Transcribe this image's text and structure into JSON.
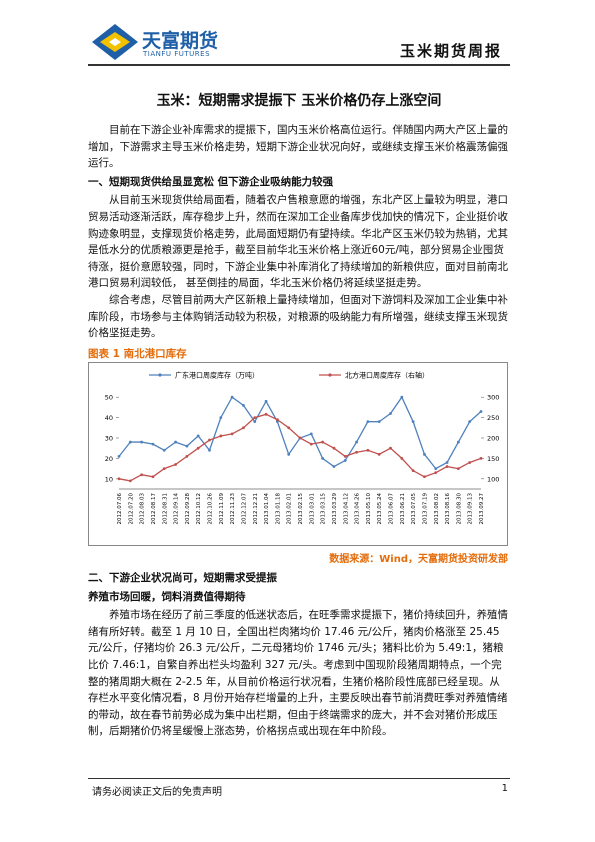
{
  "header": {
    "logo_name": "天富期货",
    "logo_sub": "TIANFU FUTURES",
    "report": "玉米期货周报"
  },
  "title": "玉米：短期需求提振下 玉米价格仍存上涨空间",
  "sections": [
    {
      "type": "p",
      "text": "目前在下游企业补库需求的提振下，国内玉米价格高位运行。伴随国内两大产区上量的增加，下游需求主导玉米价格走势，短期下游企业状况向好，或继续支撑玉米价格震荡偏强运行。"
    },
    {
      "type": "h",
      "text": "一、短期现货供给虽显宽松 但下游企业吸纳能力较强"
    },
    {
      "type": "p",
      "text": "从目前玉米现货供给局面看，随着农户售粮意愿的增强，东北产区上量较为明显，港口贸易活动逐渐活跃，库存稳步上升，然而在深加工企业备库步伐加快的情况下，企业挺价收购迹象明显，支撑现货价格走势，此局面短期仍有望持续。华北产区玉米仍较为热销，尤其是低水分的优质粮源更是抢手，截至目前华北玉米价格上涨近60元/吨，部分贸易企业囤货待涨，挺价意愿较强，同时，下游企业集中补库消化了持续增加的新粮供应，面对目前南北港口贸易利润较低， 甚至倒挂的局面，华北玉米价格仍将延续坚挺走势。"
    },
    {
      "type": "p",
      "text": "综合考虑，尽管目前两大产区新粮上量持续增加，但面对下游饲料及深加工企业集中补库阶段，市场参与主体购销活动较为积极，对粮源的吸纳能力有所增强，继续支撑玉米现货价格坚挺走势。"
    }
  ],
  "figure_caption": "图表 1 南北港口库存",
  "chart_data": {
    "type": "line",
    "categories": [
      "2012.07.06",
      "2012.07.20",
      "2012.08.03",
      "2012.08.17",
      "2012.08.31",
      "2012.09.14",
      "2012.09.28",
      "2012.10.12",
      "2012.10.26",
      "2012.11.09",
      "2012.11.23",
      "2012.12.07",
      "2012.12.21",
      "2013.01.04",
      "2013.01.18",
      "2013.02.01",
      "2013.02.15",
      "2013.03.01",
      "2013.03.15",
      "2013.03.29",
      "2013.04.12",
      "2013.04.26",
      "2013.05.10",
      "2013.05.24",
      "2013.06.07",
      "2013.06.21",
      "2013.07.05",
      "2013.07.19",
      "2013.08.02",
      "2013.08.16",
      "2013.08.30",
      "2013.09.13",
      "2013.09.27"
    ],
    "series": [
      {
        "name": "广东港口周度库存（万吨）",
        "color": "#4f81bd",
        "values": [
          21,
          28,
          28,
          27,
          24,
          28,
          26,
          31,
          24,
          40,
          50,
          46,
          38,
          48,
          38,
          22,
          30,
          32,
          20,
          16,
          19,
          28,
          38,
          38,
          42,
          50,
          38,
          22,
          15,
          18,
          28,
          38,
          43
        ]
      },
      {
        "name": "北方港口周度库存（右轴）",
        "color": "#c0504d",
        "axis": "y2",
        "values": [
          100,
          95,
          110,
          105,
          125,
          135,
          155,
          175,
          195,
          205,
          210,
          225,
          250,
          258,
          245,
          225,
          200,
          185,
          190,
          175,
          155,
          165,
          170,
          160,
          175,
          150,
          120,
          105,
          115,
          130,
          125,
          140,
          150
        ]
      }
    ],
    "ylim": [
      5,
      55
    ],
    "yticks": [
      10,
      20,
      30,
      40,
      50
    ],
    "y2lim": [
      75,
      325
    ],
    "y2ticks": [
      100,
      150,
      200,
      250,
      300
    ]
  },
  "source": "数据来源：Wind，天富期货投资研发部",
  "sections2": [
    {
      "type": "h",
      "text": "二、下游企业状况尚可，短期需求受提振"
    },
    {
      "type": "h",
      "text": "养殖市场回暖，饲料消费值得期待"
    },
    {
      "type": "p",
      "text": "养殖市场在经历了前三季度的低迷状态后，在旺季需求提振下，猪价持续回升，养殖情绪有所好转。截至 1 月 10 日，全国出栏肉猪均价 17.46 元/公斤，猪肉价格涨至 25.45 元/公斤，仔猪均价 26.3 元/公斤，二元母猪均价 1746 元/头；猪料比价为 5.49:1，猪粮比价 7.46:1，自繁自养出栏头均盈利 327 元/头。考虑到中国现阶段猪周期特点，一个完整的猪周期大概在 2-2.5 年，从目前价格运行状况看，生猪价格阶段性底部已经呈现。从存栏水平变化情况看，8 月份开始存栏增量的上升，主要反映出春节前消费旺季对养殖情绪的带动，故在春节前势必成为集中出栏期，但由于终端需求的庞大，并不会对猪价形成压制，后期猪价仍将呈缓慢上涨态势，价格拐点或出现在年中阶段。"
    }
  ],
  "footer": {
    "disclaimer": "请务必阅读正文后的免责声明",
    "page": "1"
  }
}
